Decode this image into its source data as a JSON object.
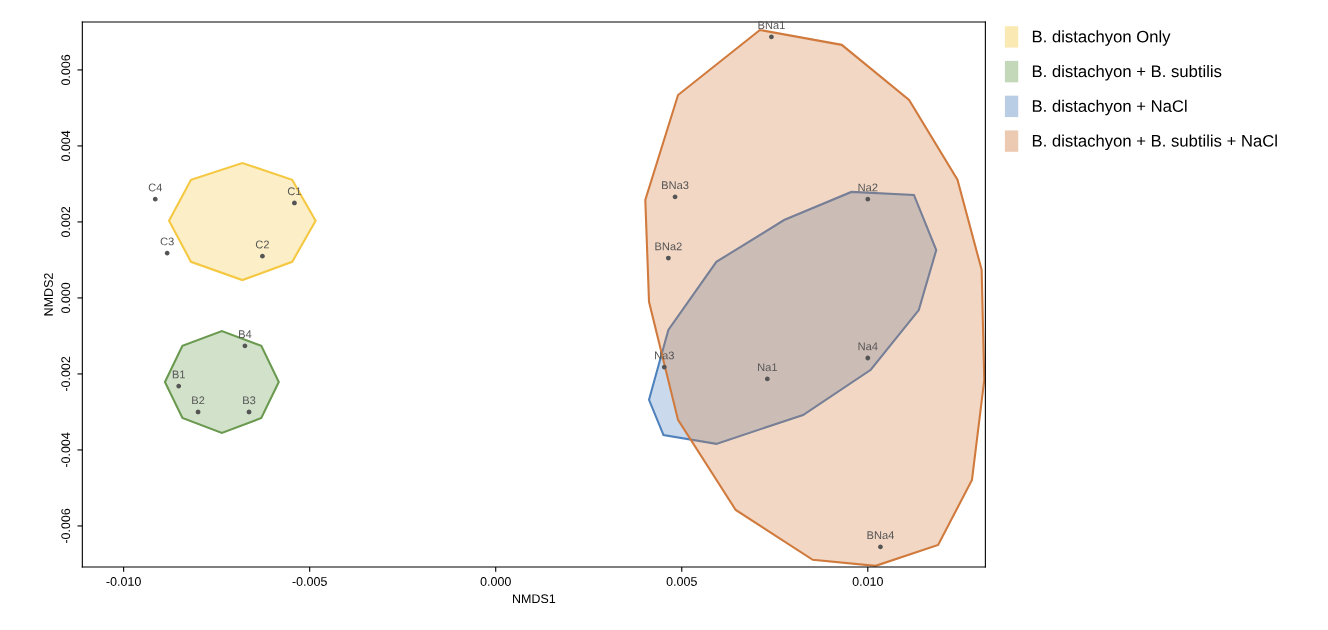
{
  "chart_data": {
    "type": "scatter",
    "xlabel": "NMDS1",
    "ylabel": "NMDS2",
    "xlim": [
      -0.01111,
      0.01316
    ],
    "ylim": [
      -0.00708,
      0.00726
    ],
    "xticks": [
      {
        "value": -0.01,
        "label": "-0.010"
      },
      {
        "value": -0.005,
        "label": "-0.005"
      },
      {
        "value": 0,
        "label": "0.000"
      },
      {
        "value": 0.005,
        "label": "0.005"
      },
      {
        "value": 0.01,
        "label": "0.010"
      }
    ],
    "yticks": [
      {
        "value": -0.006,
        "label": "-0.006"
      },
      {
        "value": -0.004,
        "label": "-0.004"
      },
      {
        "value": -0.002,
        "label": "-0.002"
      },
      {
        "value": 0,
        "label": "0.000"
      },
      {
        "value": 0.002,
        "label": "0.002"
      },
      {
        "value": 0.004,
        "label": "0.004"
      },
      {
        "value": 0.006,
        "label": "0.006"
      }
    ],
    "grid": false,
    "legend": "right",
    "series": [
      {
        "type": "area",
        "name": "B. distachyon Only",
        "color": "#f5c842",
        "x": [
          -0.00878,
          -0.00819,
          -0.00681,
          -0.00547,
          -0.00484,
          -0.00547,
          -0.00681,
          -0.00819,
          -0.00878
        ],
        "values": [
          0.00203,
          0.00311,
          0.00355,
          0.00311,
          0.00203,
          0.00095,
          0.00047,
          0.00095,
          0.00203
        ]
      },
      {
        "type": "area",
        "name": "B. distachyon + B. subtilis",
        "color": "#6a9a4f",
        "x": [
          -0.00889,
          -0.00842,
          -0.00736,
          -0.0063,
          -0.00583,
          -0.0063,
          -0.00736,
          -0.00842,
          -0.00889
        ],
        "values": [
          -0.00221,
          -0.00126,
          -0.00087,
          -0.00126,
          -0.00221,
          -0.00316,
          -0.00355,
          -0.00316,
          -0.00221
        ]
      },
      {
        "type": "area",
        "name": "B. distachyon + NaCl",
        "color": "#4f81bd",
        "x": [
          0.00412,
          0.00464,
          0.00593,
          0.00775,
          0.00956,
          0.01124,
          0.01184,
          0.01137,
          0.01008,
          0.00826,
          0.00593,
          0.00451,
          0.00412
        ],
        "values": [
          -0.00268,
          -0.00084,
          0.00095,
          0.00205,
          0.00279,
          0.00271,
          0.00126,
          -0.00032,
          -0.00189,
          -0.00308,
          -0.00384,
          -0.00361,
          -0.00268
        ]
      },
      {
        "type": "area",
        "name": "B. distachyon + B. subtilis + NaCl",
        "color": "#d07a3d",
        "x": [
          0.0071,
          0.0049,
          0.00402,
          0.00412,
          0.0049,
          0.00645,
          0.00852,
          0.01021,
          0.01189,
          0.0128,
          0.01313,
          0.01306,
          0.01241,
          0.01111,
          0.0093,
          0.0071
        ],
        "values": [
          0.00705,
          0.00534,
          0.00258,
          -0.0001,
          -0.00321,
          -0.00558,
          -0.00689,
          -0.00705,
          -0.0065,
          -0.00479,
          -0.00216,
          0.00074,
          0.00311,
          0.00521,
          0.00666,
          0.00705
        ]
      },
      {
        "color": "#555555",
        "marker": "circle",
        "x": [
          -0.00915,
          -0.00541,
          -0.00883,
          -0.00627,
          -0.00674,
          -0.00852,
          -0.008,
          -0.00663,
          0.00741,
          0.00482,
          0.00464,
          0.01034,
          0.01,
          0.00453,
          0.0073,
          0.01
        ],
        "values": [
          0.0026,
          0.0025,
          0.00118,
          0.0011,
          -0.00126,
          -0.00232,
          -0.003,
          -0.003,
          0.00687,
          0.00266,
          0.00105,
          -0.00655,
          0.0026,
          -0.00182,
          -0.00213,
          -0.00158
        ],
        "value_labels": [
          "C4",
          "C1",
          "C3",
          "C2",
          "B4",
          "B1",
          "B2",
          "B3",
          "BNa1",
          "BNa3",
          "BNa2",
          "BNa4",
          "Na2",
          "Na3",
          "Na1",
          "Na4"
        ]
      }
    ]
  }
}
